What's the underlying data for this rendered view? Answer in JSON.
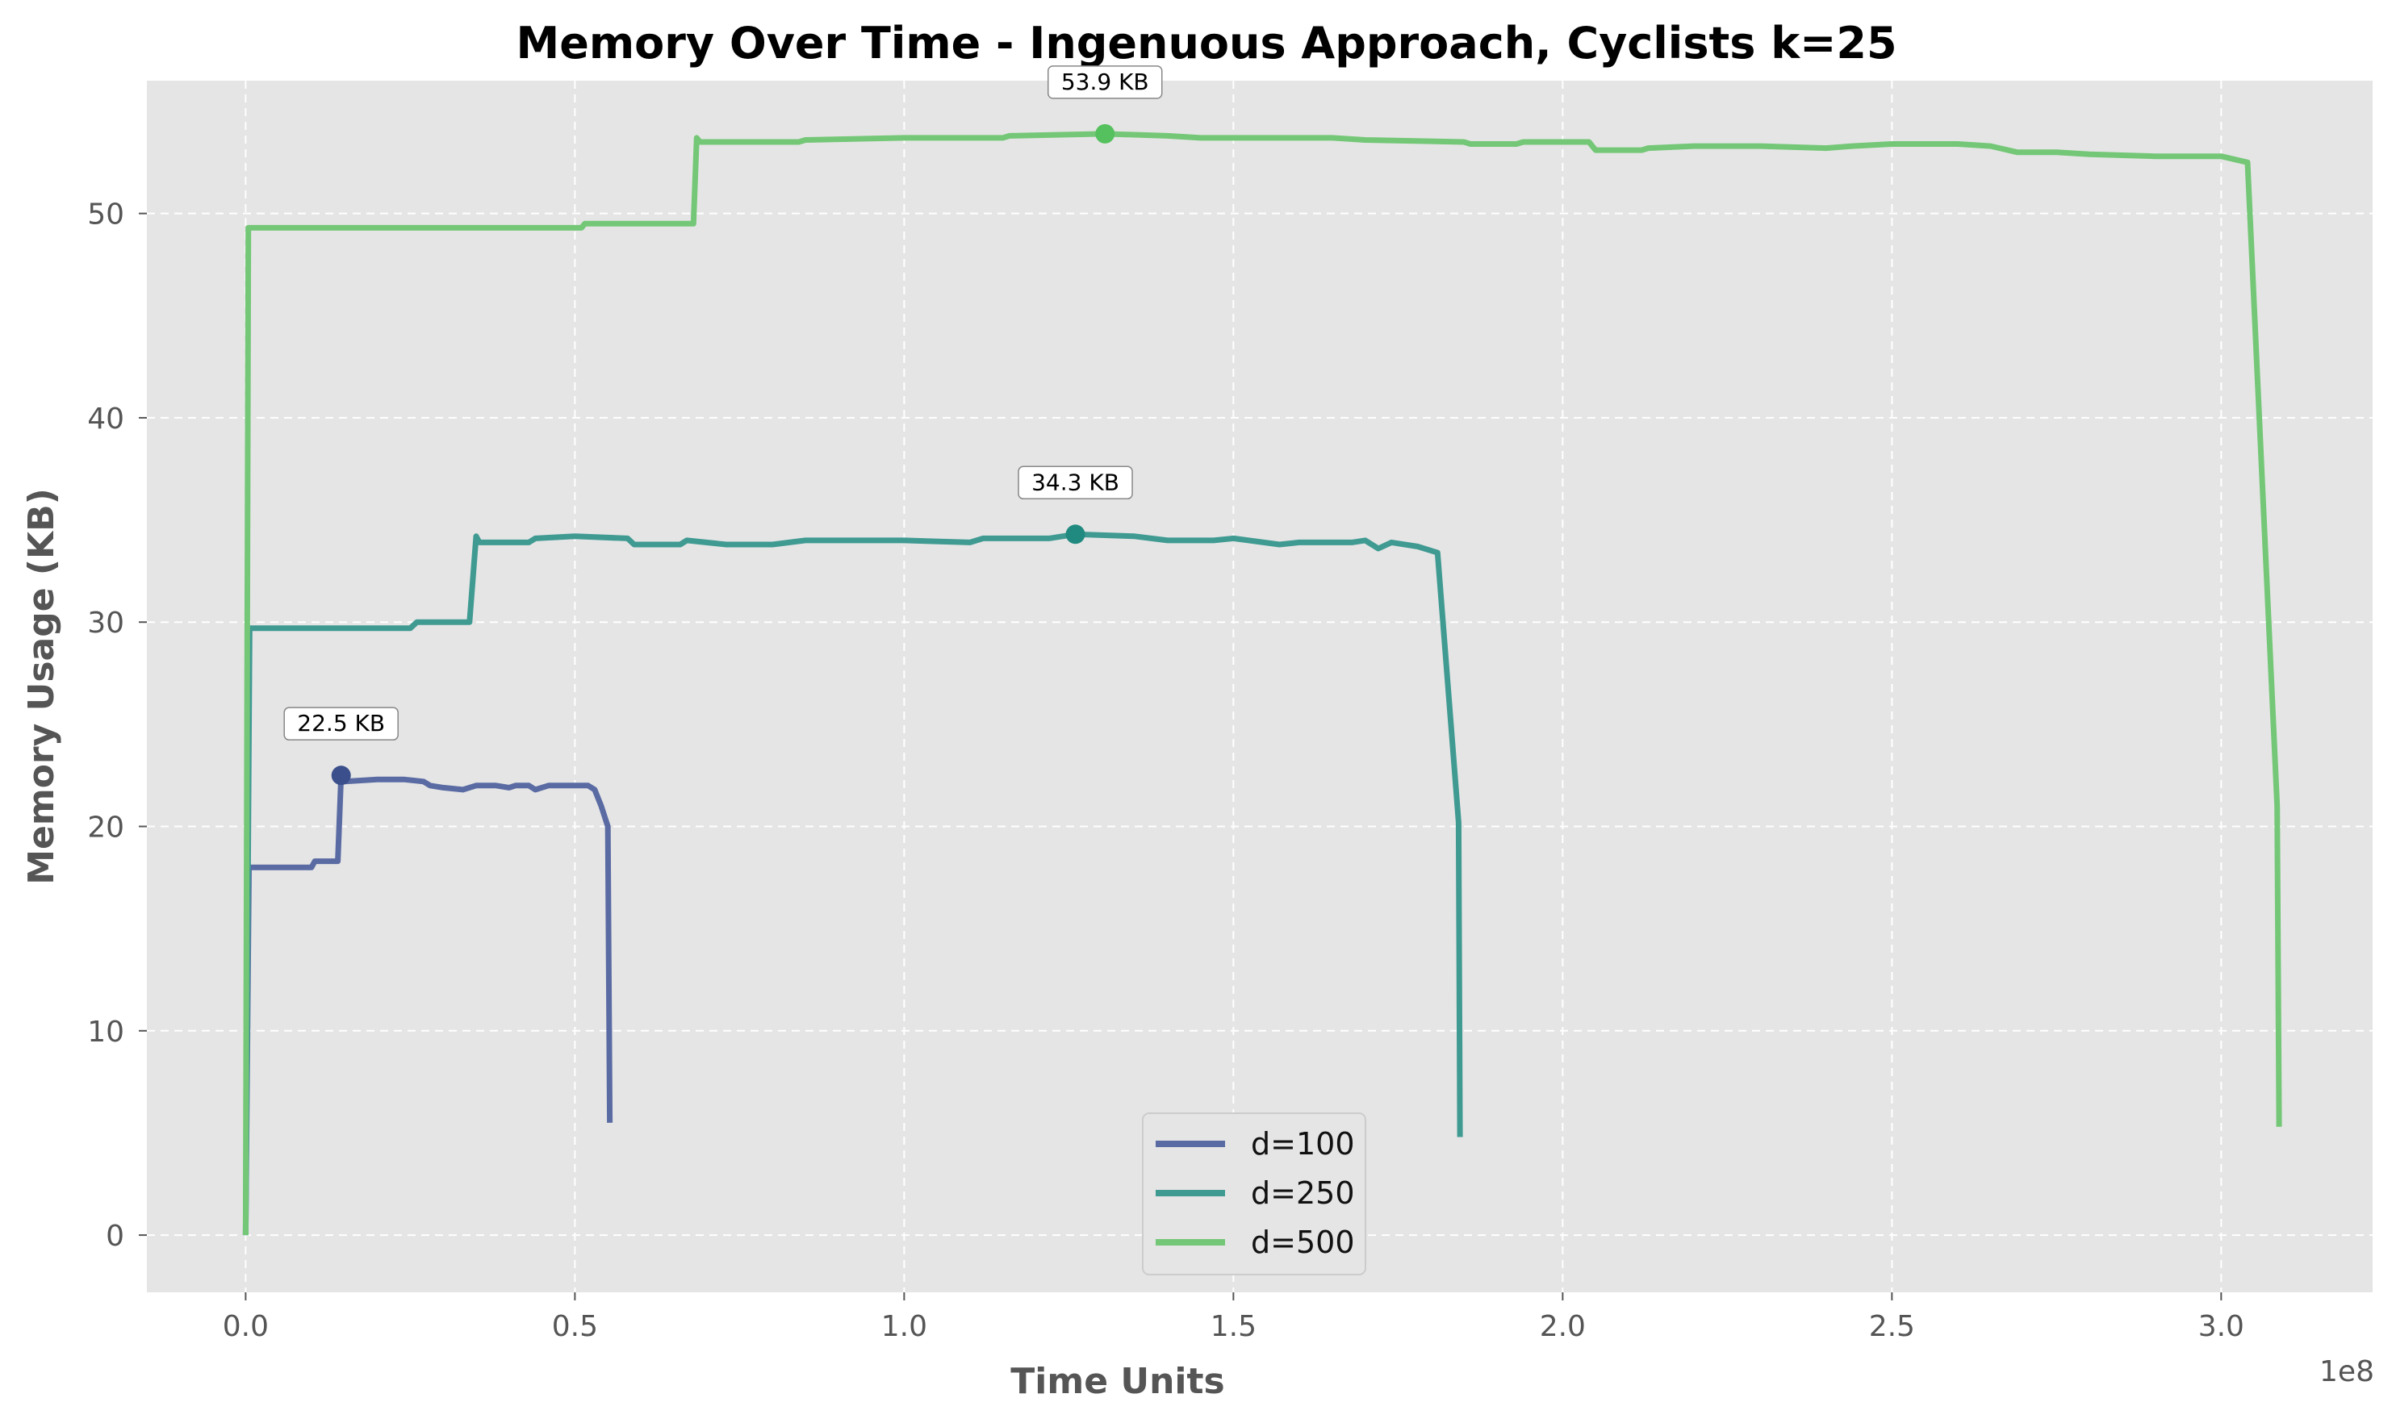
{
  "chart_data": {
    "type": "line",
    "title": "Memory Over Time - Ingenuous Approach, Cyclists k=25",
    "xlabel": "Time Units",
    "ylabel": "Memory Usage (KB)",
    "x_offset_label": "1e8",
    "x_scale_factor": 100000000,
    "xlim": [
      -0.15,
      3.23
    ],
    "ylim": [
      -2.8,
      56.5
    ],
    "x_ticks": [
      0.0,
      0.5,
      1.0,
      1.5,
      2.0,
      2.5,
      3.0
    ],
    "x_tick_labels": [
      "0.0",
      "0.5",
      "1.0",
      "1.5",
      "2.0",
      "2.5",
      "3.0"
    ],
    "y_ticks": [
      0,
      10,
      20,
      30,
      40,
      50
    ],
    "y_tick_labels": [
      "0",
      "10",
      "20",
      "30",
      "40",
      "50"
    ],
    "grid": true,
    "legend_position": "lower-center",
    "background": "#e5e5e5",
    "series": [
      {
        "name": "d=100",
        "color": "#5a6ba3",
        "marker_color": "#3b4f8c",
        "peak": {
          "x": 0.145,
          "y": 22.5,
          "label": "22.5 KB"
        },
        "points": [
          [
            0.0,
            0.0
          ],
          [
            0.005,
            18.0
          ],
          [
            0.07,
            18.0
          ],
          [
            0.1,
            18.0
          ],
          [
            0.105,
            18.3
          ],
          [
            0.14,
            18.3
          ],
          [
            0.145,
            22.5
          ],
          [
            0.15,
            22.2
          ],
          [
            0.2,
            22.3
          ],
          [
            0.24,
            22.3
          ],
          [
            0.27,
            22.2
          ],
          [
            0.28,
            22.0
          ],
          [
            0.3,
            21.9
          ],
          [
            0.33,
            21.8
          ],
          [
            0.35,
            22.0
          ],
          [
            0.38,
            22.0
          ],
          [
            0.4,
            21.9
          ],
          [
            0.41,
            22.0
          ],
          [
            0.43,
            22.0
          ],
          [
            0.44,
            21.8
          ],
          [
            0.46,
            22.0
          ],
          [
            0.5,
            22.0
          ],
          [
            0.52,
            22.0
          ],
          [
            0.53,
            21.8
          ],
          [
            0.54,
            21.0
          ],
          [
            0.55,
            20.0
          ],
          [
            0.553,
            5.5
          ]
        ]
      },
      {
        "name": "d=250",
        "color": "#3f9a92",
        "marker_color": "#218a80",
        "peak": {
          "x": 1.26,
          "y": 34.3,
          "label": "34.3 KB"
        },
        "points": [
          [
            0.0,
            0.0
          ],
          [
            0.006,
            29.7
          ],
          [
            0.1,
            29.7
          ],
          [
            0.25,
            29.7
          ],
          [
            0.26,
            30.0
          ],
          [
            0.34,
            30.0
          ],
          [
            0.35,
            34.2
          ],
          [
            0.355,
            33.9
          ],
          [
            0.43,
            33.9
          ],
          [
            0.44,
            34.1
          ],
          [
            0.5,
            34.2
          ],
          [
            0.58,
            34.1
          ],
          [
            0.59,
            33.8
          ],
          [
            0.66,
            33.8
          ],
          [
            0.67,
            34.0
          ],
          [
            0.73,
            33.8
          ],
          [
            0.8,
            33.8
          ],
          [
            0.85,
            34.0
          ],
          [
            0.9,
            34.0
          ],
          [
            1.0,
            34.0
          ],
          [
            1.1,
            33.9
          ],
          [
            1.12,
            34.1
          ],
          [
            1.22,
            34.1
          ],
          [
            1.26,
            34.3
          ],
          [
            1.35,
            34.2
          ],
          [
            1.4,
            34.0
          ],
          [
            1.47,
            34.0
          ],
          [
            1.5,
            34.1
          ],
          [
            1.57,
            33.8
          ],
          [
            1.6,
            33.9
          ],
          [
            1.68,
            33.9
          ],
          [
            1.7,
            34.0
          ],
          [
            1.72,
            33.6
          ],
          [
            1.74,
            33.9
          ],
          [
            1.78,
            33.7
          ],
          [
            1.81,
            33.4
          ],
          [
            1.842,
            20.2
          ],
          [
            1.844,
            4.8
          ]
        ]
      },
      {
        "name": "d=500",
        "color": "#74c777",
        "marker_color": "#55c15e",
        "peak": {
          "x": 1.305,
          "y": 53.9,
          "label": "53.9 KB"
        },
        "points": [
          [
            0.0,
            0.0
          ],
          [
            0.004,
            49.3
          ],
          [
            0.1,
            49.3
          ],
          [
            0.35,
            49.3
          ],
          [
            0.51,
            49.3
          ],
          [
            0.515,
            49.5
          ],
          [
            0.68,
            49.5
          ],
          [
            0.685,
            53.7
          ],
          [
            0.69,
            53.5
          ],
          [
            0.84,
            53.5
          ],
          [
            0.85,
            53.6
          ],
          [
            1.0,
            53.7
          ],
          [
            1.15,
            53.7
          ],
          [
            1.16,
            53.8
          ],
          [
            1.305,
            53.9
          ],
          [
            1.4,
            53.8
          ],
          [
            1.45,
            53.7
          ],
          [
            1.65,
            53.7
          ],
          [
            1.7,
            53.6
          ],
          [
            1.85,
            53.5
          ],
          [
            1.86,
            53.4
          ],
          [
            1.93,
            53.4
          ],
          [
            1.94,
            53.5
          ],
          [
            2.04,
            53.5
          ],
          [
            2.05,
            53.1
          ],
          [
            2.12,
            53.1
          ],
          [
            2.13,
            53.2
          ],
          [
            2.2,
            53.3
          ],
          [
            2.3,
            53.3
          ],
          [
            2.4,
            53.2
          ],
          [
            2.44,
            53.3
          ],
          [
            2.5,
            53.4
          ],
          [
            2.6,
            53.4
          ],
          [
            2.65,
            53.3
          ],
          [
            2.69,
            53.0
          ],
          [
            2.75,
            53.0
          ],
          [
            2.8,
            52.9
          ],
          [
            2.9,
            52.8
          ],
          [
            3.0,
            52.8
          ],
          [
            3.04,
            52.5
          ],
          [
            3.085,
            21.0
          ],
          [
            3.088,
            5.3
          ]
        ]
      }
    ]
  }
}
